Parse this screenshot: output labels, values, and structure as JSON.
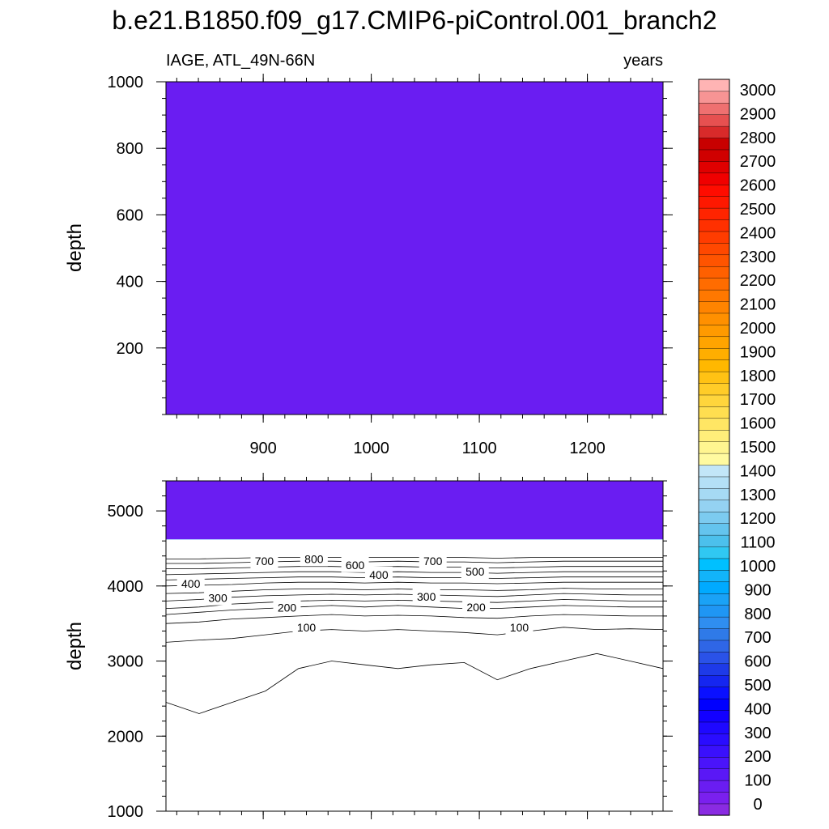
{
  "title": "b.e21.B1850.f09_g17.CMIP6-piControl.001_branch2",
  "chart_data": [
    {
      "type": "heatmap",
      "panel": "upper",
      "left_label": "IAGE, ATL_49N-66N",
      "right_label": "years",
      "xlabel": "",
      "ylabel": "depth",
      "xlim": [
        810,
        1270
      ],
      "ylim": [
        1000,
        0
      ],
      "x_ticks": [
        900,
        1000,
        1100,
        1200
      ],
      "y_ticks": [
        200,
        400,
        600,
        800,
        1000
      ],
      "field": "uniform < 100 years throughout 0-1000 m",
      "contour_labels": []
    },
    {
      "type": "heatmap",
      "panel": "lower",
      "xlabel": "",
      "ylabel": "depth",
      "xlim": [
        810,
        1270
      ],
      "ylim": [
        5400,
        1000
      ],
      "x_ticks": [
        900,
        1000,
        1100,
        1200
      ],
      "y_ticks": [
        1000,
        2000,
        3000,
        4000,
        5000
      ],
      "ocean_bottom_depth": 4620,
      "contour_bands": [
        {
          "level": 50,
          "depth": [
            2450,
            2300,
            2450,
            2600,
            2900,
            3000,
            2950,
            2900,
            2950,
            2980,
            2750,
            2900,
            3000,
            3100,
            3000,
            2900
          ]
        },
        {
          "level": 100,
          "depth": [
            3250,
            3280,
            3300,
            3350,
            3400,
            3420,
            3400,
            3420,
            3400,
            3380,
            3350,
            3400,
            3450,
            3420,
            3430,
            3420
          ]
        },
        {
          "level": 150,
          "depth": [
            3500,
            3520,
            3560,
            3580,
            3600,
            3620,
            3600,
            3610,
            3600,
            3580,
            3570,
            3600,
            3620,
            3610,
            3600,
            3600
          ]
        },
        {
          "level": 200,
          "depth": [
            3620,
            3650,
            3680,
            3700,
            3720,
            3740,
            3720,
            3740,
            3720,
            3700,
            3700,
            3720,
            3740,
            3730,
            3720,
            3720
          ]
        },
        {
          "level": 250,
          "depth": [
            3700,
            3720,
            3760,
            3780,
            3800,
            3810,
            3800,
            3810,
            3800,
            3790,
            3780,
            3800,
            3820,
            3810,
            3800,
            3800
          ]
        },
        {
          "level": 300,
          "depth": [
            3800,
            3820,
            3850,
            3870,
            3880,
            3890,
            3880,
            3890,
            3880,
            3870,
            3860,
            3880,
            3900,
            3890,
            3880,
            3880
          ]
        },
        {
          "level": 350,
          "depth": [
            3900,
            3910,
            3930,
            3950,
            3960,
            3960,
            3950,
            3960,
            3950,
            3950,
            3940,
            3950,
            3970,
            3960,
            3960,
            3960
          ]
        },
        {
          "level": 400,
          "depth": [
            4000,
            4010,
            4020,
            4040,
            4050,
            4050,
            4040,
            4050,
            4040,
            4040,
            4030,
            4040,
            4050,
            4050,
            4050,
            4050
          ]
        },
        {
          "level": 450,
          "depth": [
            4080,
            4090,
            4100,
            4110,
            4120,
            4120,
            4110,
            4120,
            4110,
            4110,
            4100,
            4110,
            4120,
            4120,
            4120,
            4120
          ]
        },
        {
          "level": 500,
          "depth": [
            4150,
            4160,
            4170,
            4180,
            4190,
            4190,
            4180,
            4190,
            4180,
            4180,
            4170,
            4180,
            4190,
            4190,
            4190,
            4190
          ]
        },
        {
          "level": 600,
          "depth": [
            4230,
            4230,
            4240,
            4250,
            4260,
            4260,
            4250,
            4260,
            4250,
            4250,
            4240,
            4250,
            4260,
            4260,
            4260,
            4260
          ]
        },
        {
          "level": 700,
          "depth": [
            4300,
            4300,
            4310,
            4320,
            4330,
            4330,
            4320,
            4330,
            4320,
            4320,
            4310,
            4320,
            4330,
            4330,
            4330,
            4330
          ]
        },
        {
          "level": 800,
          "depth": [
            4360,
            4360,
            4370,
            4380,
            4380,
            4380,
            4380,
            4380,
            4380,
            4380,
            4370,
            4380,
            4380,
            4380,
            4380,
            4380
          ]
        }
      ],
      "contour_labels": [
        {
          "text": "100",
          "x": 940,
          "depth": 3450
        },
        {
          "text": "100",
          "x": 1137,
          "depth": 3450
        },
        {
          "text": "200",
          "x": 922,
          "depth": 3710
        },
        {
          "text": "200",
          "x": 1097,
          "depth": 3720
        },
        {
          "text": "300",
          "x": 858,
          "depth": 3840
        },
        {
          "text": "300",
          "x": 1051,
          "depth": 3860
        },
        {
          "text": "400",
          "x": 833,
          "depth": 4030
        },
        {
          "text": "400",
          "x": 1007,
          "depth": 4150
        },
        {
          "text": "500",
          "x": 1096,
          "depth": 4190
        },
        {
          "text": "600",
          "x": 985,
          "depth": 4280
        },
        {
          "text": "700",
          "x": 901,
          "depth": 4330
        },
        {
          "text": "700",
          "x": 1057,
          "depth": 4330
        },
        {
          "text": "800",
          "x": 947,
          "depth": 4360
        }
      ]
    }
  ],
  "colorbar": {
    "labels": [
      "3000",
      "2900",
      "2800",
      "2700",
      "2600",
      "2500",
      "2400",
      "2300",
      "2200",
      "2100",
      "2000",
      "1900",
      "1800",
      "1700",
      "1600",
      "1500",
      "1400",
      "1300",
      "1200",
      "1100",
      "1000",
      "900",
      "800",
      "700",
      "600",
      "500",
      "400",
      "300",
      "200",
      "100",
      "0"
    ],
    "colors_bottom_to_top": [
      "#8a2be2",
      "#7a20ee",
      "#6a1df2",
      "#5a18f6",
      "#4a14fa",
      "#3a10fc",
      "#2a0cff",
      "#1e08ff",
      "#1200ff",
      "#0000ff",
      "#0a10ff",
      "#1526f0",
      "#1e3ae8",
      "#2a52e8",
      "#2f66e6",
      "#2f7ae8",
      "#2f8ef0",
      "#1f96f4",
      "#1aa2f6",
      "#00aaff",
      "#12b4fa",
      "#00c0ff",
      "#30c8f2",
      "#4cc0ec",
      "#64c4ee",
      "#7ccbf0",
      "#94d2f2",
      "#a6daf4",
      "#b4e0f6",
      "#c2e6f8",
      "#fffaa0",
      "#fff590",
      "#ffee7a",
      "#ffe664",
      "#ffde50",
      "#ffd53c",
      "#ffcc28",
      "#ffc214",
      "#ffb800",
      "#ffae00",
      "#ffa400",
      "#ff9a00",
      "#ff9000",
      "#ff8400",
      "#ff7800",
      "#ff6c00",
      "#ff6000",
      "#ff5400",
      "#ff4800",
      "#ff3c00",
      "#ff3000",
      "#ff2400",
      "#ff1800",
      "#ff0c00",
      "#f00000",
      "#e00000",
      "#d00000",
      "#c80000",
      "#d82a2a",
      "#e65050",
      "#ef7070",
      "#f79494",
      "#ffb4b4"
    ],
    "palette": {
      "deep_band_color": "#1e90ff",
      "bottom_band_color": "#00c0ff",
      "young_color": "#6a1df2"
    }
  }
}
